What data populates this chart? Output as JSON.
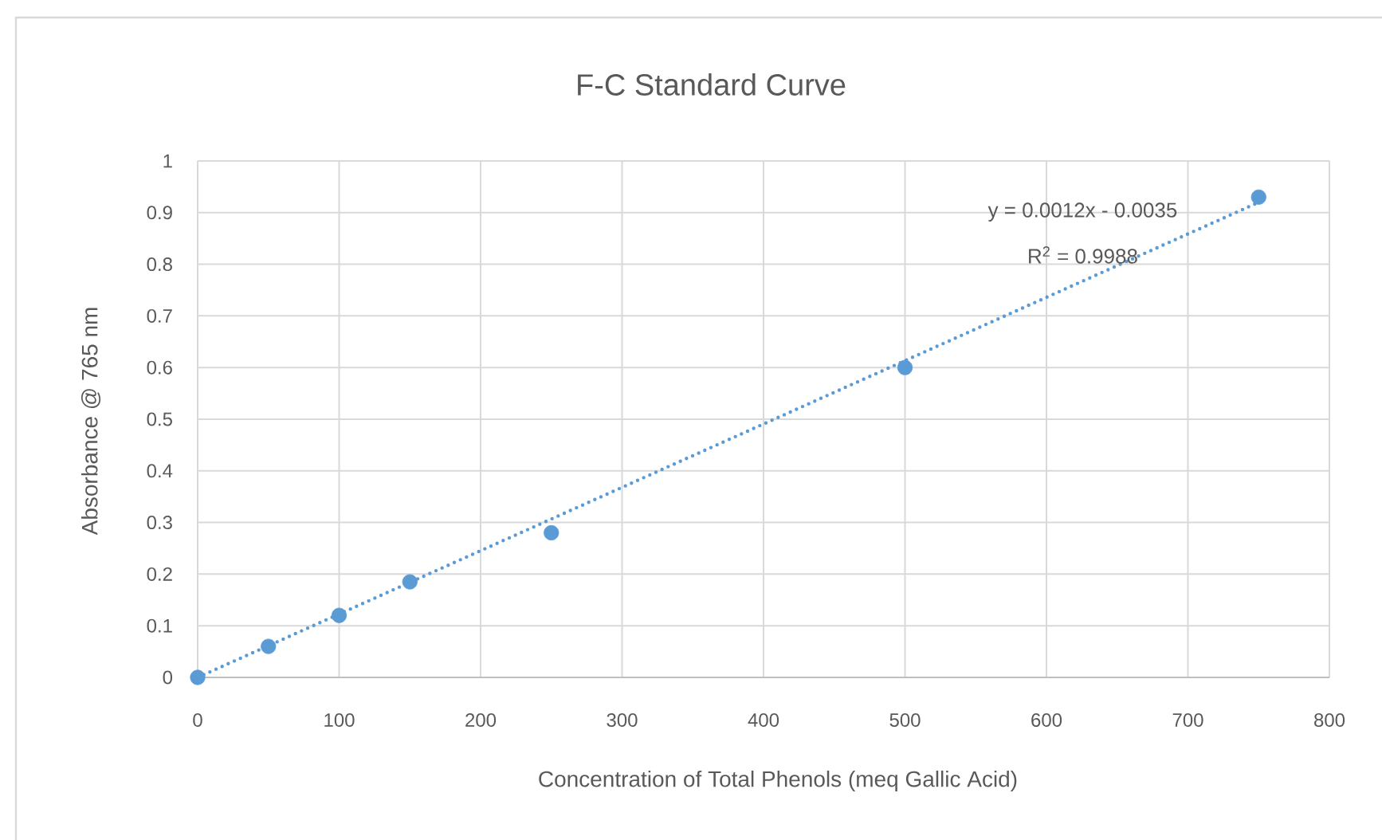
{
  "chart_data": {
    "type": "scatter",
    "title": "F-C Standard Curve",
    "xlabel": "Concentration of Total Phenols (meq Gallic Acid)",
    "ylabel": "Absorbance @ 765 nm",
    "annotations": [
      "y = 0.0012x - 0.0035",
      "R$^{2}$ = 0.9988"
    ],
    "x": [
      0,
      50,
      100,
      150,
      250,
      500,
      750
    ],
    "series": [
      {
        "color": "#5b9bd5",
        "marker": "circle",
        "values": [
          0,
          0.06,
          0.12,
          0.185,
          0.28,
          0.6,
          0.93
        ]
      },
      {
        "type": "line",
        "x": [
          0,
          750
        ],
        "color": "#5b9bd5",
        "marker": "none",
        "line_style": "dotted",
        "values": [
          0,
          0.92
        ]
      }
    ],
    "xlim": [
      0,
      800
    ],
    "ylim": [
      0,
      1
    ],
    "xticks": [
      0,
      100,
      200,
      300,
      400,
      500,
      600,
      700,
      800
    ],
    "yticks": [
      0,
      0.1,
      0.2,
      0.3,
      0.4,
      0.5,
      0.6,
      0.7,
      0.8,
      0.9,
      1
    ],
    "grid": true
  }
}
